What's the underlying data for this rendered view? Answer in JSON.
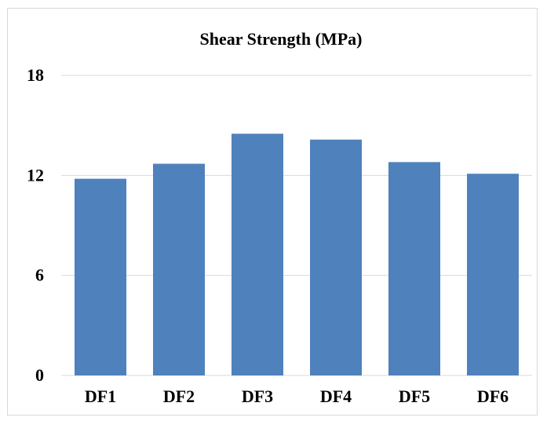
{
  "chart_data": {
    "type": "bar",
    "title": "Shear Strength (MPa)",
    "xlabel": "",
    "ylabel": "",
    "categories": [
      "DF1",
      "DF2",
      "DF3",
      "DF4",
      "DF5",
      "DF6"
    ],
    "values": [
      11.8,
      12.7,
      14.5,
      14.15,
      12.8,
      12.1
    ],
    "ylim": [
      0,
      18
    ],
    "yticks": [
      "0",
      "6",
      "12",
      "18"
    ],
    "grid": true,
    "legend": "none",
    "colors": {
      "bar": "#4f81bd",
      "grid": "#d9d9d9",
      "frame": "#d9d9d9",
      "text": "#000000"
    }
  }
}
